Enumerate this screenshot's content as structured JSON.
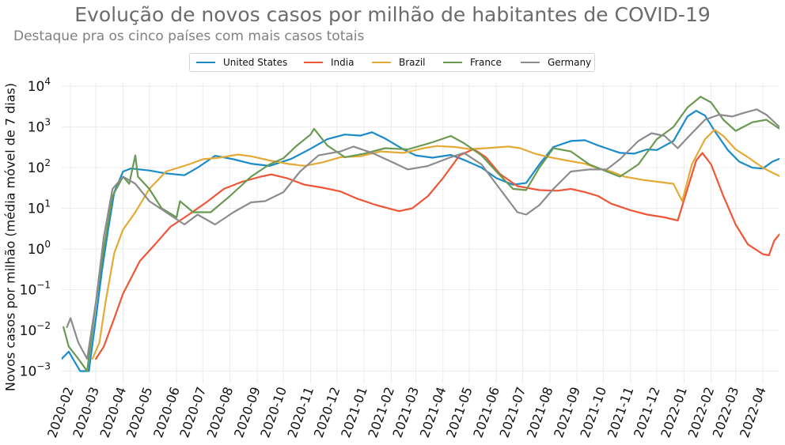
{
  "chart_data": {
    "type": "line",
    "title": "Evolução de novos casos por milhão de habitantes de COVID-19",
    "subtitle": "Destaque pra os cinco países com mais casos totais",
    "xlabel": "",
    "ylabel": "Novos casos por milhão (média móvel de 7 dias)",
    "y_scale": "log",
    "ylim": [
      0.0005,
      12000
    ],
    "xlim": [
      "2020-01-22",
      "2022-04-20"
    ],
    "grid": true,
    "legend_position": "top-center",
    "x_ticks": [
      "2020-02",
      "2020-03",
      "2020-04",
      "2020-05",
      "2020-06",
      "2020-07",
      "2020-08",
      "2020-09",
      "2020-10",
      "2020-11",
      "2020-12",
      "2021-01",
      "2021-02",
      "2021-03",
      "2021-04",
      "2021-05",
      "2021-06",
      "2021-07",
      "2021-08",
      "2021-09",
      "2021-10",
      "2021-11",
      "2021-12",
      "2022-01",
      "2022-02",
      "2022-03",
      "2022-04"
    ],
    "y_ticks": [
      {
        "value": 0.001,
        "base": "10",
        "exp": "−3"
      },
      {
        "value": 0.01,
        "base": "10",
        "exp": "−2"
      },
      {
        "value": 0.1,
        "base": "10",
        "exp": "−1"
      },
      {
        "value": 1,
        "base": "10",
        "exp": "0"
      },
      {
        "value": 10,
        "base": "10",
        "exp": "1"
      },
      {
        "value": 100,
        "base": "10",
        "exp": "2"
      },
      {
        "value": 1000,
        "base": "10",
        "exp": "3"
      },
      {
        "value": 10000,
        "base": "10",
        "exp": "4"
      }
    ],
    "series": [
      {
        "name": "United States",
        "color": "#1a8bc8",
        "points": [
          [
            "2020-01-22",
            0.002
          ],
          [
            "2020-01-30",
            0.003
          ],
          [
            "2020-02-12",
            0.001
          ],
          [
            "2020-02-22",
            0.001
          ],
          [
            "2020-03-01",
            0.02
          ],
          [
            "2020-03-08",
            0.3
          ],
          [
            "2020-03-15",
            3
          ],
          [
            "2020-03-22",
            25
          ],
          [
            "2020-04-01",
            80
          ],
          [
            "2020-04-10",
            95
          ],
          [
            "2020-05-01",
            85
          ],
          [
            "2020-05-20",
            72
          ],
          [
            "2020-06-10",
            65
          ],
          [
            "2020-06-25",
            100
          ],
          [
            "2020-07-15",
            195
          ],
          [
            "2020-08-05",
            160
          ],
          [
            "2020-08-25",
            125
          ],
          [
            "2020-09-15",
            110
          ],
          [
            "2020-10-10",
            165
          ],
          [
            "2020-11-01",
            290
          ],
          [
            "2020-11-20",
            500
          ],
          [
            "2020-12-10",
            650
          ],
          [
            "2020-12-28",
            610
          ],
          [
            "2021-01-10",
            740
          ],
          [
            "2021-01-25",
            520
          ],
          [
            "2021-02-15",
            280
          ],
          [
            "2021-03-01",
            200
          ],
          [
            "2021-03-20",
            175
          ],
          [
            "2021-04-10",
            205
          ],
          [
            "2021-04-25",
            155
          ],
          [
            "2021-05-15",
            100
          ],
          [
            "2021-06-01",
            55
          ],
          [
            "2021-06-20",
            38
          ],
          [
            "2021-07-05",
            42
          ],
          [
            "2021-07-20",
            120
          ],
          [
            "2021-08-05",
            320
          ],
          [
            "2021-08-25",
            450
          ],
          [
            "2021-09-10",
            470
          ],
          [
            "2021-09-25",
            350
          ],
          [
            "2021-10-20",
            230
          ],
          [
            "2021-11-05",
            220
          ],
          [
            "2021-11-20",
            280
          ],
          [
            "2021-12-01",
            270
          ],
          [
            "2021-12-20",
            450
          ],
          [
            "2022-01-05",
            1800
          ],
          [
            "2022-01-15",
            2500
          ],
          [
            "2022-01-25",
            1900
          ],
          [
            "2022-02-05",
            800
          ],
          [
            "2022-02-20",
            270
          ],
          [
            "2022-03-05",
            140
          ],
          [
            "2022-03-20",
            100
          ],
          [
            "2022-04-01",
            95
          ],
          [
            "2022-04-12",
            140
          ],
          [
            "2022-04-20",
            165
          ]
        ]
      },
      {
        "name": "India",
        "color": "#ef5637",
        "points": [
          [
            "2020-03-01",
            0.002
          ],
          [
            "2020-03-10",
            0.004
          ],
          [
            "2020-03-22",
            0.02
          ],
          [
            "2020-04-01",
            0.08
          ],
          [
            "2020-04-20",
            0.5
          ],
          [
            "2020-05-10",
            1.5
          ],
          [
            "2020-05-25",
            3.5
          ],
          [
            "2020-06-15",
            7
          ],
          [
            "2020-07-05",
            14
          ],
          [
            "2020-07-25",
            30
          ],
          [
            "2020-08-15",
            45
          ],
          [
            "2020-09-05",
            60
          ],
          [
            "2020-09-17",
            68
          ],
          [
            "2020-10-05",
            55
          ],
          [
            "2020-10-25",
            38
          ],
          [
            "2020-11-15",
            32
          ],
          [
            "2020-12-05",
            26
          ],
          [
            "2020-12-25",
            17
          ],
          [
            "2021-01-15",
            12
          ],
          [
            "2021-02-10",
            8.5
          ],
          [
            "2021-02-25",
            10
          ],
          [
            "2021-03-15",
            20
          ],
          [
            "2021-04-01",
            55
          ],
          [
            "2021-04-20",
            200
          ],
          [
            "2021-05-06",
            285
          ],
          [
            "2021-05-20",
            180
          ],
          [
            "2021-06-05",
            70
          ],
          [
            "2021-06-25",
            35
          ],
          [
            "2021-07-20",
            28
          ],
          [
            "2021-08-10",
            27
          ],
          [
            "2021-08-25",
            30
          ],
          [
            "2021-09-10",
            25
          ],
          [
            "2021-09-25",
            20
          ],
          [
            "2021-10-10",
            13
          ],
          [
            "2021-11-01",
            9
          ],
          [
            "2021-11-20",
            7
          ],
          [
            "2021-12-10",
            6
          ],
          [
            "2021-12-25",
            5
          ],
          [
            "2022-01-05",
            30
          ],
          [
            "2022-01-15",
            150
          ],
          [
            "2022-01-22",
            230
          ],
          [
            "2022-02-01",
            120
          ],
          [
            "2022-02-15",
            20
          ],
          [
            "2022-03-01",
            4
          ],
          [
            "2022-03-15",
            1.3
          ],
          [
            "2022-04-01",
            0.75
          ],
          [
            "2022-04-08",
            0.7
          ],
          [
            "2022-04-14",
            1.6
          ],
          [
            "2022-04-20",
            2.3
          ]
        ]
      },
      {
        "name": "Brazil",
        "color": "#e5a935",
        "points": [
          [
            "2020-02-26",
            0.002
          ],
          [
            "2020-03-05",
            0.005
          ],
          [
            "2020-03-12",
            0.05
          ],
          [
            "2020-03-22",
            0.8
          ],
          [
            "2020-04-01",
            3
          ],
          [
            "2020-04-15",
            8
          ],
          [
            "2020-05-01",
            30
          ],
          [
            "2020-05-20",
            80
          ],
          [
            "2020-06-15",
            120
          ],
          [
            "2020-07-01",
            160
          ],
          [
            "2020-07-20",
            175
          ],
          [
            "2020-08-10",
            210
          ],
          [
            "2020-08-25",
            190
          ],
          [
            "2020-09-15",
            150
          ],
          [
            "2020-10-05",
            125
          ],
          [
            "2020-10-25",
            110
          ],
          [
            "2020-11-15",
            135
          ],
          [
            "2020-12-05",
            180
          ],
          [
            "2020-12-28",
            190
          ],
          [
            "2021-01-20",
            250
          ],
          [
            "2021-02-15",
            230
          ],
          [
            "2021-03-10",
            300
          ],
          [
            "2021-03-25",
            340
          ],
          [
            "2021-04-15",
            320
          ],
          [
            "2021-05-01",
            285
          ],
          [
            "2021-05-20",
            300
          ],
          [
            "2021-06-15",
            330
          ],
          [
            "2021-06-28",
            300
          ],
          [
            "2021-07-15",
            220
          ],
          [
            "2021-08-01",
            180
          ],
          [
            "2021-08-20",
            150
          ],
          [
            "2021-09-10",
            125
          ],
          [
            "2021-09-25",
            95
          ],
          [
            "2021-10-10",
            80
          ],
          [
            "2021-10-25",
            60
          ],
          [
            "2021-11-15",
            50
          ],
          [
            "2021-12-01",
            45
          ],
          [
            "2021-12-20",
            40
          ],
          [
            "2021-12-30",
            15
          ],
          [
            "2022-01-10",
            120
          ],
          [
            "2022-01-25",
            500
          ],
          [
            "2022-02-05",
            850
          ],
          [
            "2022-02-15",
            600
          ],
          [
            "2022-03-01",
            280
          ],
          [
            "2022-03-15",
            180
          ],
          [
            "2022-04-01",
            100
          ],
          [
            "2022-04-12",
            75
          ],
          [
            "2022-04-20",
            62
          ]
        ]
      },
      {
        "name": "France",
        "color": "#6a9a52",
        "points": [
          [
            "2020-01-24",
            0.012
          ],
          [
            "2020-01-30",
            0.004
          ],
          [
            "2020-02-10",
            0.002
          ],
          [
            "2020-02-20",
            0.001
          ],
          [
            "2020-03-01",
            0.05
          ],
          [
            "2020-03-10",
            1
          ],
          [
            "2020-03-20",
            20
          ],
          [
            "2020-04-01",
            60
          ],
          [
            "2020-04-08",
            40
          ],
          [
            "2020-04-15",
            200
          ],
          [
            "2020-04-18",
            60
          ],
          [
            "2020-05-01",
            30
          ],
          [
            "2020-05-15",
            10
          ],
          [
            "2020-06-01",
            6
          ],
          [
            "2020-06-05",
            15
          ],
          [
            "2020-06-20",
            8
          ],
          [
            "2020-07-10",
            8
          ],
          [
            "2020-08-01",
            20
          ],
          [
            "2020-08-25",
            60
          ],
          [
            "2020-09-15",
            120
          ],
          [
            "2020-10-01",
            170
          ],
          [
            "2020-10-15",
            330
          ],
          [
            "2020-11-01",
            650
          ],
          [
            "2020-11-05",
            900
          ],
          [
            "2020-11-20",
            350
          ],
          [
            "2020-12-10",
            180
          ],
          [
            "2021-01-01",
            220
          ],
          [
            "2021-01-25",
            300
          ],
          [
            "2021-02-20",
            280
          ],
          [
            "2021-03-20",
            420
          ],
          [
            "2021-04-10",
            600
          ],
          [
            "2021-04-25",
            400
          ],
          [
            "2021-05-15",
            200
          ],
          [
            "2021-06-01",
            80
          ],
          [
            "2021-06-20",
            30
          ],
          [
            "2021-07-05",
            28
          ],
          [
            "2021-07-20",
            100
          ],
          [
            "2021-08-05",
            300
          ],
          [
            "2021-08-25",
            250
          ],
          [
            "2021-09-15",
            120
          ],
          [
            "2021-10-05",
            80
          ],
          [
            "2021-10-20",
            60
          ],
          [
            "2021-11-10",
            120
          ],
          [
            "2021-12-01",
            500
          ],
          [
            "2021-12-20",
            1000
          ],
          [
            "2022-01-05",
            3000
          ],
          [
            "2022-01-20",
            5500
          ],
          [
            "2022-02-01",
            4000
          ],
          [
            "2022-02-15",
            1500
          ],
          [
            "2022-03-01",
            800
          ],
          [
            "2022-03-20",
            1300
          ],
          [
            "2022-04-05",
            1500
          ],
          [
            "2022-04-20",
            900
          ]
        ]
      },
      {
        "name": "Germany",
        "color": "#8c8c8c",
        "points": [
          [
            "2020-01-28",
            0.012
          ],
          [
            "2020-02-01",
            0.02
          ],
          [
            "2020-02-10",
            0.005
          ],
          [
            "2020-02-20",
            0.002
          ],
          [
            "2020-03-01",
            0.05
          ],
          [
            "2020-03-10",
            2
          ],
          [
            "2020-03-20",
            30
          ],
          [
            "2020-04-01",
            60
          ],
          [
            "2020-04-15",
            40
          ],
          [
            "2020-05-01",
            15
          ],
          [
            "2020-05-20",
            8
          ],
          [
            "2020-06-10",
            4
          ],
          [
            "2020-06-25",
            7
          ],
          [
            "2020-07-15",
            4
          ],
          [
            "2020-08-05",
            8
          ],
          [
            "2020-08-25",
            14
          ],
          [
            "2020-09-10",
            15
          ],
          [
            "2020-10-01",
            25
          ],
          [
            "2020-10-20",
            80
          ],
          [
            "2020-11-10",
            200
          ],
          [
            "2020-12-05",
            250
          ],
          [
            "2020-12-20",
            330
          ],
          [
            "2021-01-10",
            230
          ],
          [
            "2021-02-01",
            140
          ],
          [
            "2021-02-20",
            90
          ],
          [
            "2021-03-15",
            110
          ],
          [
            "2021-04-10",
            180
          ],
          [
            "2021-04-25",
            230
          ],
          [
            "2021-05-15",
            120
          ],
          [
            "2021-06-05",
            30
          ],
          [
            "2021-06-25",
            8
          ],
          [
            "2021-07-05",
            7
          ],
          [
            "2021-07-20",
            12
          ],
          [
            "2021-08-05",
            30
          ],
          [
            "2021-08-25",
            80
          ],
          [
            "2021-09-15",
            90
          ],
          [
            "2021-10-05",
            90
          ],
          [
            "2021-10-20",
            160
          ],
          [
            "2021-11-10",
            450
          ],
          [
            "2021-11-25",
            700
          ],
          [
            "2021-12-10",
            600
          ],
          [
            "2021-12-25",
            300
          ],
          [
            "2022-01-10",
            700
          ],
          [
            "2022-01-25",
            1500
          ],
          [
            "2022-02-10",
            2000
          ],
          [
            "2022-02-25",
            1800
          ],
          [
            "2022-03-10",
            2200
          ],
          [
            "2022-03-25",
            2700
          ],
          [
            "2022-04-05",
            2000
          ],
          [
            "2022-04-20",
            1000
          ]
        ]
      }
    ]
  }
}
